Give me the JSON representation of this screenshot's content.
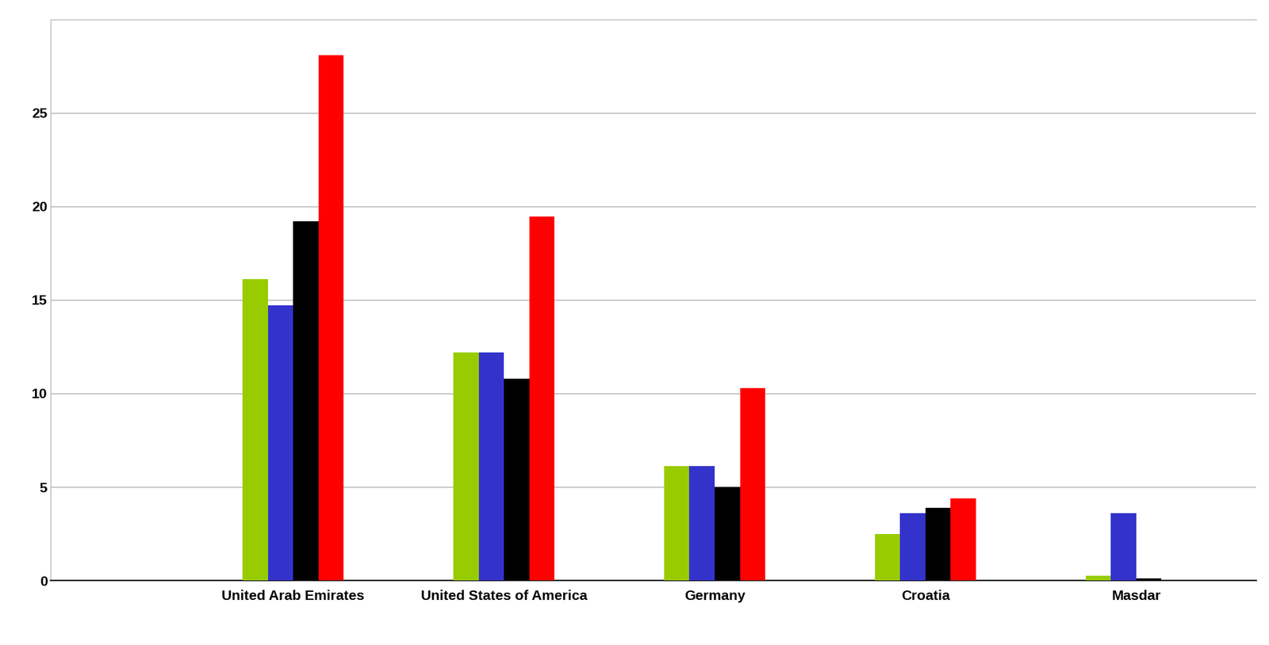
{
  "chart_data": {
    "type": "bar",
    "categories": [
      "United Arab Emirates",
      "United States of America",
      "Germany",
      "Croatia",
      "Masdar"
    ],
    "series": [
      {
        "color": "#99cc00",
        "values": [
          16.1,
          12.2,
          6.1,
          2.5,
          0.25
        ]
      },
      {
        "color": "#3333cc",
        "values": [
          14.7,
          12.2,
          6.1,
          3.6,
          3.6
        ]
      },
      {
        "color": "#000000",
        "values": [
          19.2,
          10.8,
          5.0,
          3.9,
          0.1
        ]
      },
      {
        "color": "#ff0000",
        "values": [
          28.1,
          19.45,
          10.3,
          4.4,
          null
        ]
      }
    ],
    "ylim": [
      0,
      30
    ],
    "yticks": [
      0,
      5,
      10,
      15,
      20,
      25
    ],
    "grid": true
  }
}
